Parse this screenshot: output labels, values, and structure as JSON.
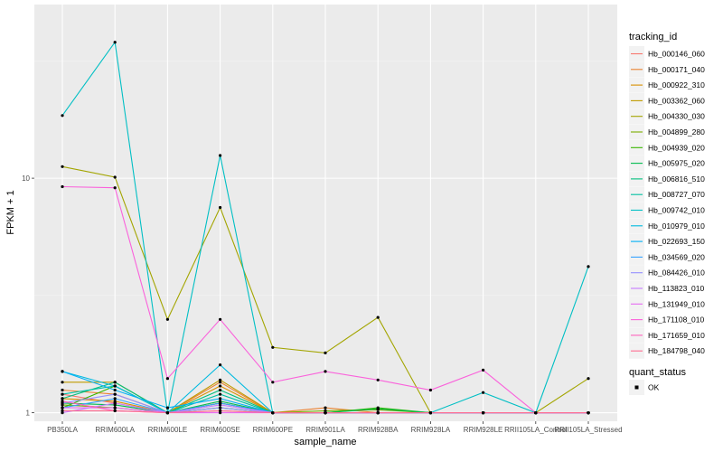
{
  "chart_data": {
    "type": "line",
    "xlabel": "sample_name",
    "ylabel": "FPKM + 1",
    "y_scale": "log10",
    "ylim": [
      0.92,
      55
    ],
    "y_ticks": [
      1,
      10
    ],
    "y_tick_labels": [
      "1",
      "10"
    ],
    "grid": true,
    "categories": [
      "PB350LA",
      "RRIM600LA",
      "RRIM600LE",
      "RRIM600SE",
      "RRIM600PE",
      "RRIM901LA",
      "RRIM928BA",
      "RRIM928LA",
      "RRIM928LE",
      "RRII105LA_Control",
      "RRII105LA_Stressed"
    ],
    "legend_position": "right",
    "legend_title": "tracking_id",
    "series": [
      {
        "name": "Hb_000146_060",
        "color": "#F8766D",
        "values": [
          1.2,
          1.1,
          1.0,
          1.1,
          1.0,
          1.0,
          1.0,
          1.0,
          1.0,
          1.0,
          1.0
        ]
      },
      {
        "name": "Hb_000171_040",
        "color": "#EA8331",
        "values": [
          1.25,
          1.2,
          1.0,
          1.35,
          1.0,
          1.05,
          1.0,
          1.0,
          1.0,
          1.0,
          1.0
        ]
      },
      {
        "name": "Hb_000922_310",
        "color": "#D89000",
        "values": [
          1.15,
          1.12,
          1.0,
          1.3,
          1.0,
          1.0,
          1.0,
          1.0,
          1.0,
          1.0,
          1.0
        ]
      },
      {
        "name": "Hb_003362_060",
        "color": "#C09B00",
        "values": [
          1.35,
          1.35,
          1.0,
          1.38,
          1.0,
          1.0,
          1.0,
          1.0,
          1.0,
          1.0,
          1.0
        ]
      },
      {
        "name": "Hb_004330_030",
        "color": "#A3A500",
        "values": [
          11.2,
          10.1,
          2.5,
          7.5,
          1.9,
          1.8,
          2.55,
          1.0,
          1.0,
          1.0,
          1.4
        ]
      },
      {
        "name": "Hb_004899_280",
        "color": "#7CAE00",
        "values": [
          1.08,
          1.05,
          1.0,
          1.1,
          1.0,
          1.02,
          1.03,
          1.0,
          1.0,
          1.0,
          1.0
        ]
      },
      {
        "name": "Hb_004939_020",
        "color": "#39B600",
        "values": [
          1.05,
          1.3,
          1.0,
          1.05,
          1.0,
          1.0,
          1.05,
          1.0,
          1.0,
          1.0,
          1.0
        ]
      },
      {
        "name": "Hb_005975_020",
        "color": "#00BB4E",
        "values": [
          1.1,
          1.08,
          1.0,
          1.12,
          1.0,
          1.0,
          1.04,
          1.0,
          1.0,
          1.0,
          1.0
        ]
      },
      {
        "name": "Hb_006816_510",
        "color": "#00BF7D",
        "values": [
          1.15,
          1.35,
          1.0,
          1.25,
          1.0,
          1.0,
          1.0,
          1.0,
          1.0,
          1.0,
          1.0
        ]
      },
      {
        "name": "Hb_008727_070",
        "color": "#00C1A3",
        "values": [
          1.2,
          1.3,
          1.0,
          1.2,
          1.0,
          1.0,
          1.0,
          1.0,
          1.0,
          1.0,
          1.0
        ]
      },
      {
        "name": "Hb_009742_010",
        "color": "#00BFC4",
        "values": [
          18.5,
          38.0,
          1.0,
          12.5,
          1.0,
          1.0,
          1.0,
          1.0,
          1.22,
          1.0,
          4.2
        ]
      },
      {
        "name": "Hb_010979_010",
        "color": "#00BAE0",
        "values": [
          1.5,
          1.3,
          1.0,
          1.6,
          1.0,
          1.0,
          1.0,
          1.0,
          1.0,
          1.0,
          1.0
        ]
      },
      {
        "name": "Hb_022693_150",
        "color": "#00B0F6",
        "values": [
          1.5,
          1.25,
          1.05,
          1.15,
          1.0,
          1.0,
          1.0,
          1.0,
          1.0,
          1.0,
          1.0
        ]
      },
      {
        "name": "Hb_034569_020",
        "color": "#35A2FF",
        "values": [
          1.05,
          1.15,
          1.0,
          1.1,
          1.0,
          1.0,
          1.0,
          1.0,
          1.0,
          1.0,
          1.0
        ]
      },
      {
        "name": "Hb_084426_010",
        "color": "#9590FF",
        "values": [
          1.1,
          1.2,
          1.0,
          1.05,
          1.0,
          1.0,
          1.0,
          1.0,
          1.0,
          1.0,
          1.0
        ]
      },
      {
        "name": "Hb_113823_010",
        "color": "#C77CFF",
        "values": [
          1.0,
          1.1,
          1.0,
          1.08,
          1.0,
          1.0,
          1.0,
          1.0,
          1.0,
          1.0,
          1.0
        ]
      },
      {
        "name": "Hb_131949_010",
        "color": "#E76BF3",
        "values": [
          1.05,
          1.05,
          1.0,
          1.0,
          1.0,
          1.0,
          1.0,
          1.0,
          1.0,
          1.0,
          1.0
        ]
      },
      {
        "name": "Hb_171108_010",
        "color": "#FA62DB",
        "values": [
          9.2,
          9.1,
          1.4,
          2.5,
          1.35,
          1.5,
          1.38,
          1.25,
          1.52,
          1.0,
          1.0
        ]
      },
      {
        "name": "Hb_171659_010",
        "color": "#FF62BC",
        "values": [
          1.12,
          1.02,
          1.0,
          1.02,
          1.0,
          1.0,
          1.0,
          1.0,
          1.0,
          1.0,
          1.0
        ]
      },
      {
        "name": "Hb_184798_040",
        "color": "#FF6C91",
        "values": [
          1.02,
          1.02,
          1.0,
          1.02,
          1.0,
          1.0,
          1.0,
          1.0,
          1.0,
          1.0,
          1.0
        ]
      }
    ],
    "quant_status": {
      "title": "quant_status",
      "entries": [
        "OK"
      ]
    }
  }
}
